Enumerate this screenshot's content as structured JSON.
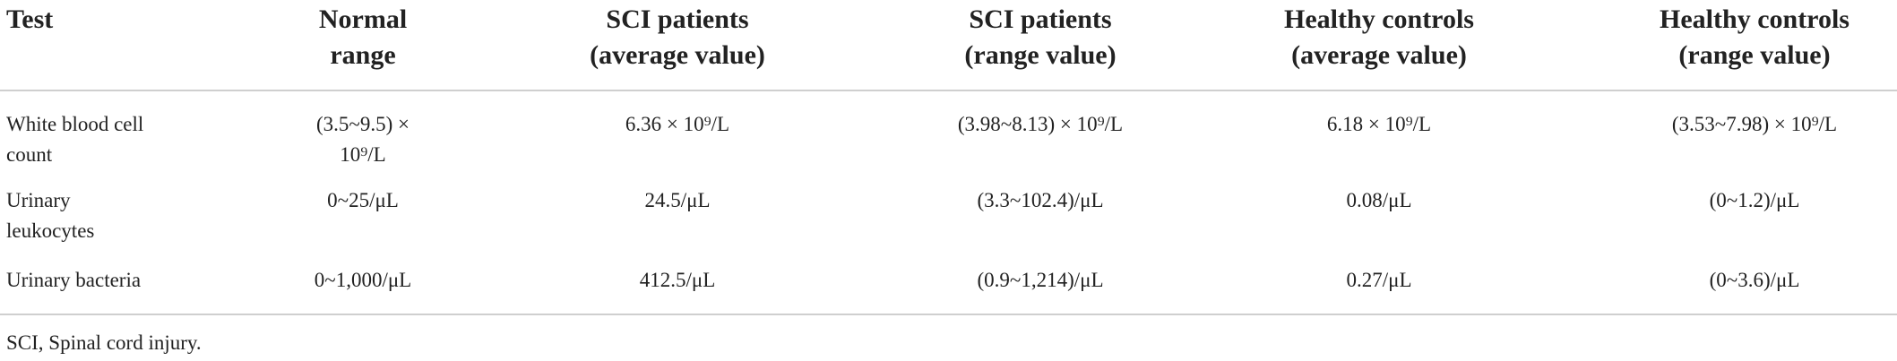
{
  "table": {
    "header": [
      "Test",
      "Normal\nrange",
      "SCI patients\n(average value)",
      "SCI patients\n(range value)",
      "Healthy controls\n(average value)",
      "Healthy controls\n(range value)"
    ],
    "rows": [
      [
        "White blood cell\ncount",
        "(3.5~9.5) ×\n10⁹/L",
        "6.36 × 10⁹/L",
        "(3.98~8.13) × 10⁹/L",
        "6.18 × 10⁹/L",
        "(3.53~7.98) × 10⁹/L"
      ],
      [
        "Urinary\nleukocytes",
        "0~25/μL",
        "24.5/μL",
        "(3.3~102.4)/μL",
        "0.08/μL",
        "(0~1.2)/μL"
      ],
      [
        "Urinary bacteria",
        "0~1,000/μL",
        "412.5/μL",
        "(0.9~1,214)/μL",
        "0.27/μL",
        "(0~3.6)/μL"
      ]
    ],
    "footnote": "SCI, Spinal cord injury."
  }
}
